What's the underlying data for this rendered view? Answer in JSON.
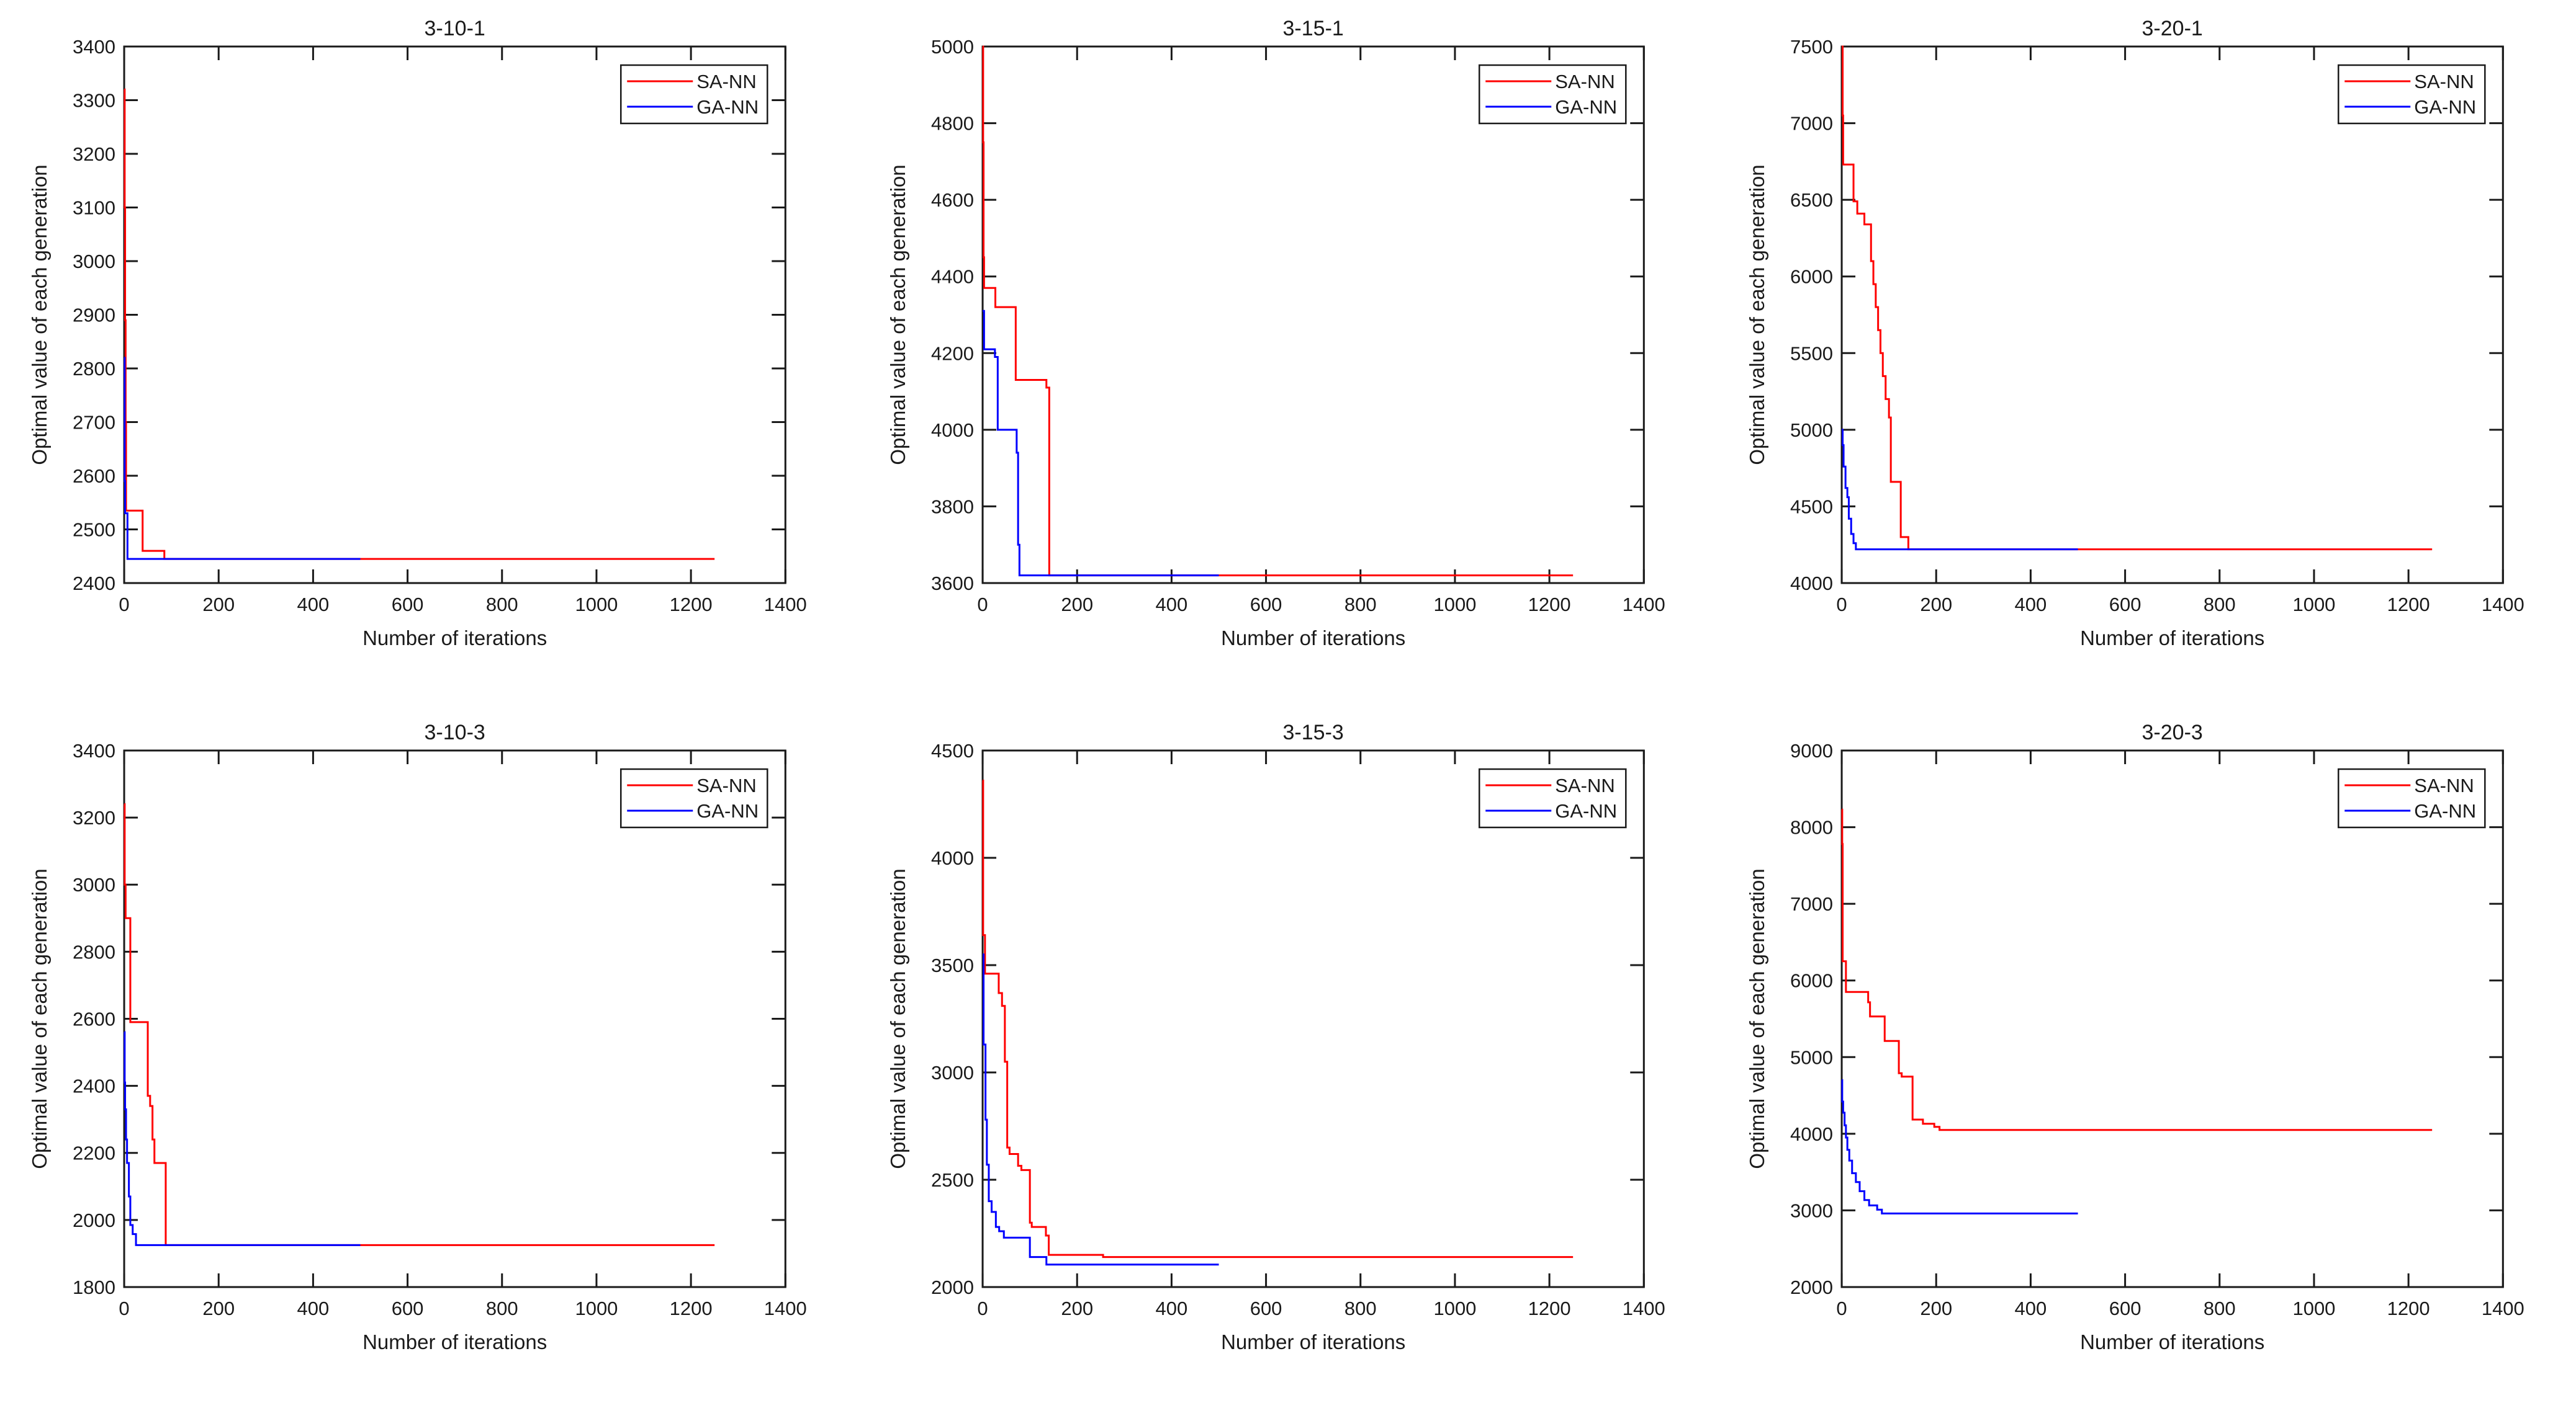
{
  "figure": {
    "background": "#ffffff",
    "axis_color": "#1a1a1a",
    "series_colors": {
      "sa": "#ff0000",
      "ga": "#0000ff"
    }
  },
  "legend": {
    "entries": [
      {
        "label": "SA-NN",
        "color": "#ff0000"
      },
      {
        "label": "GA-NN",
        "color": "#0000ff"
      }
    ],
    "position": "northeast"
  },
  "chart_data": [
    {
      "type": "line",
      "title": "3-10-1",
      "xlabel": "Number of iterations",
      "ylabel": "Optimal value of each generation",
      "xlim": [
        0,
        1400
      ],
      "ylim": [
        2400,
        3400
      ],
      "xticks": [
        0,
        200,
        400,
        600,
        800,
        1000,
        1200,
        1400
      ],
      "yticks": [
        2400,
        2500,
        2600,
        2700,
        2800,
        2900,
        3000,
        3100,
        3200,
        3300,
        3400
      ],
      "grid": false,
      "legend_position": "northeast",
      "series": [
        {
          "name": "SA-NN",
          "color": "#ff0000",
          "points": [
            [
              0,
              3320
            ],
            [
              1,
              3100
            ],
            [
              2,
              2890
            ],
            [
              3,
              2700
            ],
            [
              4,
              2535
            ],
            [
              39,
              2460
            ],
            [
              85,
              2445
            ],
            [
              1250,
              2445
            ]
          ]
        },
        {
          "name": "GA-NN",
          "color": "#0000ff",
          "points": [
            [
              0,
              2820
            ],
            [
              1,
              2590
            ],
            [
              2,
              2530
            ],
            [
              7,
              2445
            ],
            [
              500,
              2445
            ]
          ]
        }
      ]
    },
    {
      "type": "line",
      "title": "3-15-1",
      "xlabel": "Number of iterations",
      "ylabel": "Optimal value of each generation",
      "xlim": [
        0,
        1400
      ],
      "ylim": [
        3600,
        5000
      ],
      "xticks": [
        0,
        200,
        400,
        600,
        800,
        1000,
        1200,
        1400
      ],
      "yticks": [
        3600,
        3800,
        4000,
        4200,
        4400,
        4600,
        4800,
        5000
      ],
      "grid": false,
      "legend_position": "northeast",
      "series": [
        {
          "name": "SA-NN",
          "color": "#ff0000",
          "points": [
            [
              0,
              5000
            ],
            [
              1,
              4750
            ],
            [
              2,
              4450
            ],
            [
              3,
              4370
            ],
            [
              27,
              4320
            ],
            [
              70,
              4130
            ],
            [
              135,
              4110
            ],
            [
              141,
              3620
            ],
            [
              1250,
              3620
            ]
          ]
        },
        {
          "name": "GA-NN",
          "color": "#0000ff",
          "points": [
            [
              0,
              4310
            ],
            [
              3,
              4210
            ],
            [
              26,
              4190
            ],
            [
              32,
              4000
            ],
            [
              72,
              3940
            ],
            [
              75,
              3700
            ],
            [
              78,
              3620
            ],
            [
              500,
              3620
            ]
          ]
        }
      ]
    },
    {
      "type": "line",
      "title": "3-20-1",
      "xlabel": "Number of iterations",
      "ylabel": "Optimal value of each generation",
      "xlim": [
        0,
        1400
      ],
      "ylim": [
        4000,
        7500
      ],
      "xticks": [
        0,
        200,
        400,
        600,
        800,
        1000,
        1200,
        1400
      ],
      "yticks": [
        4000,
        4500,
        5000,
        5500,
        6000,
        6500,
        7000,
        7500
      ],
      "grid": false,
      "legend_position": "northeast",
      "series": [
        {
          "name": "SA-NN",
          "color": "#ff0000",
          "points": [
            [
              0,
              7500
            ],
            [
              2,
              7050
            ],
            [
              3,
              6730
            ],
            [
              25,
              6490
            ],
            [
              33,
              6410
            ],
            [
              48,
              6340
            ],
            [
              62,
              6100
            ],
            [
              67,
              5950
            ],
            [
              72,
              5800
            ],
            [
              77,
              5650
            ],
            [
              82,
              5500
            ],
            [
              87,
              5350
            ],
            [
              93,
              5200
            ],
            [
              100,
              5080
            ],
            [
              104,
              4660
            ],
            [
              125,
              4300
            ],
            [
              141,
              4220
            ],
            [
              1250,
              4220
            ]
          ]
        },
        {
          "name": "GA-NN",
          "color": "#0000ff",
          "points": [
            [
              0,
              5000
            ],
            [
              2,
              4900
            ],
            [
              4,
              4760
            ],
            [
              8,
              4620
            ],
            [
              12,
              4560
            ],
            [
              15,
              4420
            ],
            [
              20,
              4320
            ],
            [
              25,
              4260
            ],
            [
              30,
              4220
            ],
            [
              500,
              4220
            ]
          ]
        }
      ]
    },
    {
      "type": "line",
      "title": "3-10-3",
      "xlabel": "Number of iterations",
      "ylabel": "Optimal value of each generation",
      "xlim": [
        0,
        1400
      ],
      "ylim": [
        1800,
        3400
      ],
      "xticks": [
        0,
        200,
        400,
        600,
        800,
        1000,
        1200,
        1400
      ],
      "yticks": [
        1800,
        2000,
        2200,
        2400,
        2600,
        2800,
        3000,
        3200,
        3400
      ],
      "grid": false,
      "legend_position": "northeast",
      "series": [
        {
          "name": "SA-NN",
          "color": "#ff0000",
          "points": [
            [
              0,
              3240
            ],
            [
              1,
              3000
            ],
            [
              3,
              2900
            ],
            [
              13,
              2590
            ],
            [
              50,
              2370
            ],
            [
              55,
              2340
            ],
            [
              60,
              2240
            ],
            [
              64,
              2170
            ],
            [
              88,
              1925
            ],
            [
              1250,
              1925
            ]
          ]
        },
        {
          "name": "GA-NN",
          "color": "#0000ff",
          "points": [
            [
              0,
              2560
            ],
            [
              1,
              2410
            ],
            [
              2,
              2330
            ],
            [
              4,
              2240
            ],
            [
              6,
              2170
            ],
            [
              10,
              2070
            ],
            [
              13,
              1985
            ],
            [
              18,
              1958
            ],
            [
              25,
              1925
            ],
            [
              500,
              1925
            ]
          ]
        }
      ]
    },
    {
      "type": "line",
      "title": "3-15-3",
      "xlabel": "Number of iterations",
      "ylabel": "Optimal value of each generation",
      "xlim": [
        0,
        1400
      ],
      "ylim": [
        2000,
        4500
      ],
      "xticks": [
        0,
        200,
        400,
        600,
        800,
        1000,
        1200,
        1400
      ],
      "yticks": [
        2000,
        2500,
        3000,
        3500,
        4000,
        4500
      ],
      "grid": false,
      "legend_position": "northeast",
      "series": [
        {
          "name": "SA-NN",
          "color": "#ff0000",
          "points": [
            [
              0,
              4360
            ],
            [
              1,
              3640
            ],
            [
              5,
              3460
            ],
            [
              34,
              3370
            ],
            [
              41,
              3310
            ],
            [
              47,
              3050
            ],
            [
              52,
              2650
            ],
            [
              57,
              2620
            ],
            [
              75,
              2565
            ],
            [
              82,
              2545
            ],
            [
              100,
              2300
            ],
            [
              104,
              2280
            ],
            [
              134,
              2240
            ],
            [
              140,
              2150
            ],
            [
              255,
              2140
            ],
            [
              1250,
              2140
            ]
          ]
        },
        {
          "name": "GA-NN",
          "color": "#0000ff",
          "points": [
            [
              0,
              3550
            ],
            [
              2,
              3130
            ],
            [
              6,
              2780
            ],
            [
              9,
              2570
            ],
            [
              13,
              2400
            ],
            [
              19,
              2350
            ],
            [
              28,
              2280
            ],
            [
              35,
              2260
            ],
            [
              45,
              2230
            ],
            [
              100,
              2140
            ],
            [
              135,
              2105
            ],
            [
              500,
              2105
            ]
          ]
        }
      ]
    },
    {
      "type": "line",
      "title": "3-20-3",
      "xlabel": "Number of iterations",
      "ylabel": "Optimal value of each generation",
      "xlim": [
        0,
        1400
      ],
      "ylim": [
        2000,
        9000
      ],
      "xticks": [
        0,
        200,
        400,
        600,
        800,
        1000,
        1200,
        1400
      ],
      "yticks": [
        2000,
        3000,
        4000,
        5000,
        6000,
        7000,
        8000,
        9000
      ],
      "grid": false,
      "legend_position": "northeast",
      "series": [
        {
          "name": "SA-NN",
          "color": "#ff0000",
          "points": [
            [
              0,
              8230
            ],
            [
              1,
              7780
            ],
            [
              2,
              6250
            ],
            [
              9,
              5850
            ],
            [
              56,
              5715
            ],
            [
              60,
              5530
            ],
            [
              91,
              5210
            ],
            [
              121,
              4790
            ],
            [
              127,
              4745
            ],
            [
              150,
              4185
            ],
            [
              172,
              4130
            ],
            [
              196,
              4090
            ],
            [
              207,
              4050
            ],
            [
              1250,
              4050
            ]
          ]
        },
        {
          "name": "GA-NN",
          "color": "#0000ff",
          "points": [
            [
              0,
              4700
            ],
            [
              1,
              4420
            ],
            [
              3,
              4275
            ],
            [
              6,
              4110
            ],
            [
              9,
              3950
            ],
            [
              12,
              3790
            ],
            [
              16,
              3650
            ],
            [
              22,
              3485
            ],
            [
              30,
              3370
            ],
            [
              38,
              3250
            ],
            [
              48,
              3135
            ],
            [
              58,
              3065
            ],
            [
              75,
              3010
            ],
            [
              85,
              2960
            ],
            [
              500,
              2960
            ]
          ]
        }
      ]
    }
  ]
}
